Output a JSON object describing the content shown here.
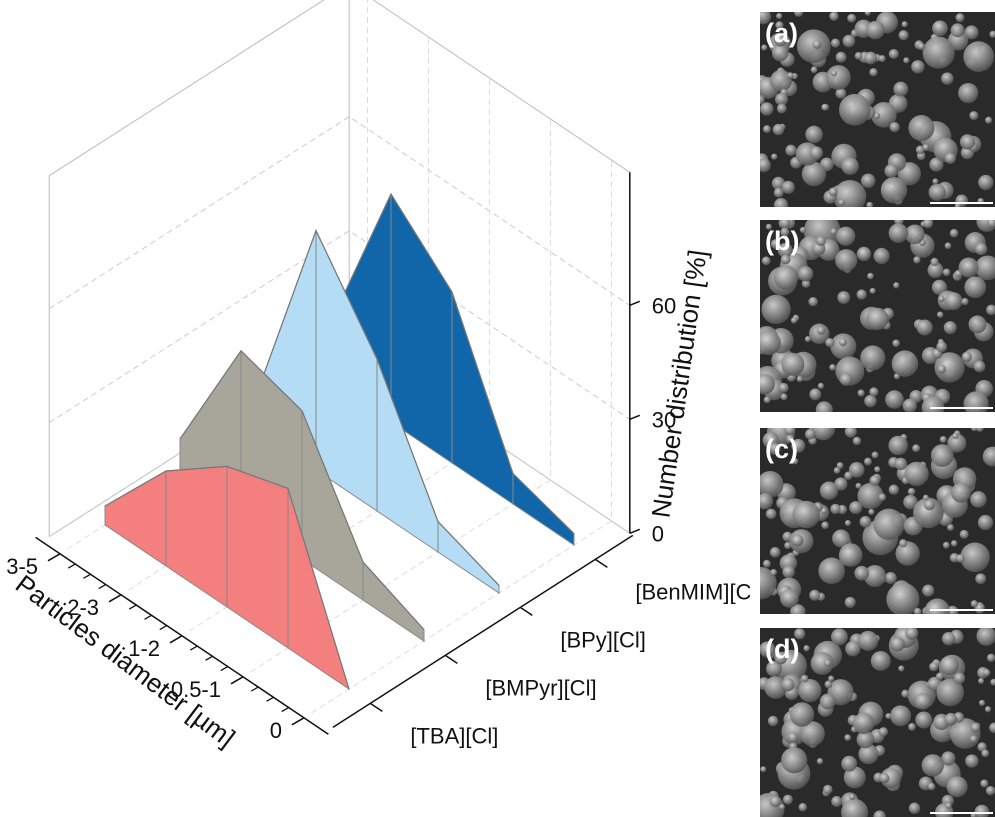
{
  "chart_data": {
    "type": "wall3d",
    "x_label": "Particles diameter [µm]",
    "z_label": "Number distribution [%]",
    "categories": [
      "3-5",
      "2-3",
      "1-2",
      "0.5-1",
      "0"
    ],
    "series": [
      {
        "name": "[TBA][Cl]",
        "color": "#f47f7f",
        "values": [
          5,
          25,
          37,
          42,
          0
        ]
      },
      {
        "name": "[BMPyr][Cl]",
        "color": "#a8a69a",
        "values": [
          10,
          44,
          39,
          10,
          3
        ]
      },
      {
        "name": "[BPy][Cl]",
        "color": "#b4dcf4",
        "values": [
          8,
          63,
          40,
          8,
          2
        ]
      },
      {
        "name": "[BenMIM][Cl]",
        "color": "#1066a8",
        "values": [
          15,
          60,
          45,
          8,
          3
        ]
      }
    ],
    "zlim": [
      0,
      95
    ],
    "zticks": [
      0,
      30,
      60
    ],
    "grid": true
  },
  "panels": [
    {
      "label": "(a)"
    },
    {
      "label": "(b)"
    },
    {
      "label": "(c)"
    },
    {
      "label": "(d)"
    }
  ]
}
